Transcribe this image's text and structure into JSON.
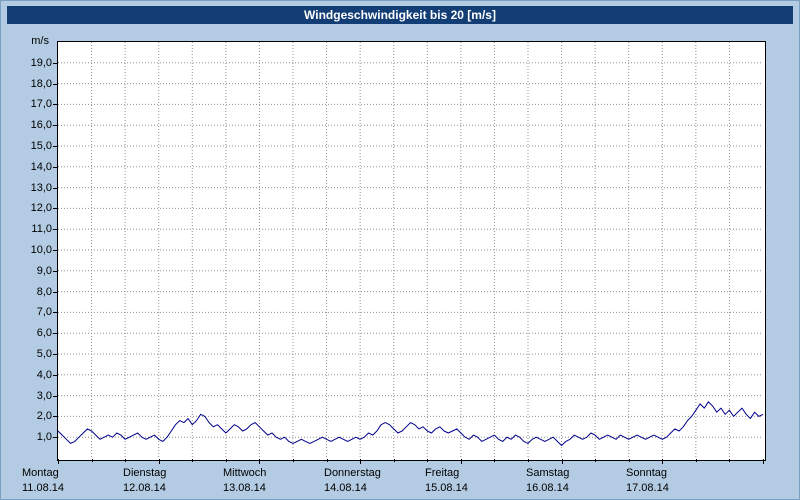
{
  "window": {
    "background_color": "#b3cce3",
    "title_bar_color": "#123e75",
    "title_text_color": "#ffffff"
  },
  "title": "Windgeschwindigkeit bis 20 [m/s]",
  "chart_data": {
    "type": "line",
    "title": "Windgeschwindigkeit bis 20 [m/s]",
    "ylabel_unit": "m/s",
    "xlabel": "",
    "ylim": [
      0,
      20
    ],
    "ytick_step": 1,
    "ytick_labels": [
      "1,0",
      "2,0",
      "3,0",
      "4,0",
      "5,0",
      "6,0",
      "7,0",
      "8,0",
      "9,0",
      "10,0",
      "11,0",
      "12,0",
      "13,0",
      "14,0",
      "15,0",
      "16,0",
      "17,0",
      "18,0",
      "19,0"
    ],
    "grid": {
      "horizontal": true,
      "vertical": true,
      "v_step_hours": 8,
      "style": "dotted",
      "color": "#909090"
    },
    "x_days": [
      {
        "label": "Montag",
        "date": "11.08.14"
      },
      {
        "label": "Dienstag",
        "date": "12.08.14"
      },
      {
        "label": "Mittwoch",
        "date": "13.08.14"
      },
      {
        "label": "Donnerstag",
        "date": "14.08.14"
      },
      {
        "label": "Freitag",
        "date": "15.08.14"
      },
      {
        "label": "Samstag",
        "date": "16.08.14"
      },
      {
        "label": "Sonntag",
        "date": "17.08.14"
      }
    ],
    "x_hours_total": 168,
    "series": [
      {
        "name": "Windgeschwindigkeit",
        "color": "#00008b",
        "sampling": "hourly",
        "values": [
          1.3,
          1.1,
          0.9,
          0.7,
          0.8,
          1.0,
          1.2,
          1.4,
          1.3,
          1.1,
          0.9,
          1.0,
          1.1,
          1.0,
          1.2,
          1.1,
          0.9,
          1.0,
          1.1,
          1.2,
          1.0,
          0.9,
          1.0,
          1.1,
          0.9,
          0.8,
          1.0,
          1.3,
          1.6,
          1.8,
          1.7,
          1.9,
          1.6,
          1.8,
          2.1,
          2.0,
          1.7,
          1.5,
          1.6,
          1.4,
          1.2,
          1.4,
          1.6,
          1.5,
          1.3,
          1.4,
          1.6,
          1.7,
          1.5,
          1.3,
          1.1,
          1.2,
          1.0,
          0.9,
          1.0,
          0.8,
          0.7,
          0.8,
          0.9,
          0.8,
          0.7,
          0.8,
          0.9,
          1.0,
          0.9,
          0.8,
          0.9,
          1.0,
          0.9,
          0.8,
          0.9,
          1.0,
          0.9,
          1.0,
          1.2,
          1.1,
          1.3,
          1.6,
          1.7,
          1.6,
          1.4,
          1.2,
          1.3,
          1.5,
          1.7,
          1.6,
          1.4,
          1.5,
          1.3,
          1.2,
          1.4,
          1.5,
          1.3,
          1.2,
          1.3,
          1.4,
          1.2,
          1.0,
          0.9,
          1.1,
          1.0,
          0.8,
          0.9,
          1.0,
          1.1,
          0.9,
          0.8,
          1.0,
          0.9,
          1.1,
          1.0,
          0.8,
          0.7,
          0.9,
          1.0,
          0.9,
          0.8,
          0.9,
          1.0,
          0.8,
          0.6,
          0.8,
          0.9,
          1.1,
          1.0,
          0.9,
          1.0,
          1.2,
          1.1,
          0.9,
          1.0,
          1.1,
          1.0,
          0.9,
          1.1,
          1.0,
          0.9,
          1.0,
          1.1,
          1.0,
          0.9,
          1.0,
          1.1,
          1.0,
          0.9,
          1.0,
          1.2,
          1.4,
          1.3,
          1.5,
          1.8,
          2.0,
          2.3,
          2.6,
          2.4,
          2.7,
          2.5,
          2.2,
          2.4,
          2.1,
          2.3,
          2.0,
          2.2,
          2.4,
          2.1,
          1.9,
          2.2,
          2.0,
          2.1
        ]
      }
    ]
  }
}
